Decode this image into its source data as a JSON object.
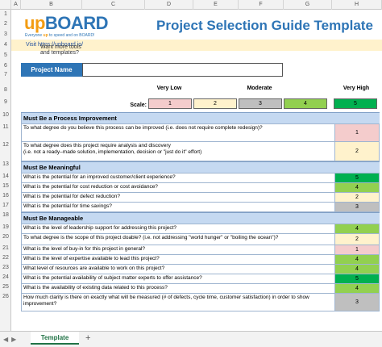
{
  "columns": [
    "A",
    "B",
    "C",
    "D",
    "E",
    "F",
    "G",
    "H"
  ],
  "rows": [
    "1",
    "2",
    "3",
    "4",
    "5",
    "6",
    "7",
    "8",
    "9",
    "10",
    "11",
    "12",
    "13",
    "14",
    "15",
    "16",
    "17",
    "18",
    "19",
    "20",
    "21",
    "22",
    "23",
    "24",
    "25",
    "26"
  ],
  "logo": {
    "up": "up",
    "board": "BOARD",
    "tagline_pre": "Everyone ",
    "tagline_up": "up",
    "tagline_post": " to speed and on BOARD!"
  },
  "title": "Project Selection Guide Template",
  "banner": {
    "text": "Want more tools and templates? ",
    "link": "Visit https://upboard.io/"
  },
  "project_name": {
    "label": "Project Name",
    "value": ""
  },
  "scale": {
    "label": "Scale:",
    "very_low": "Very Low",
    "moderate": "Moderate",
    "very_high": "Very High",
    "values": [
      "1",
      "2",
      "3",
      "4",
      "5"
    ]
  },
  "colors": {
    "1": "#f4cccc",
    "2": "#fff2cc",
    "3": "#bfbfbf",
    "4": "#92d050",
    "5": "#00b050",
    "accent": "#2e75b6",
    "section": "#c5d9f1"
  },
  "sections": [
    {
      "title": "Must Be a Process Improvement",
      "questions": [
        {
          "text": "To what degree do you believe this process can be improved (i.e. does not require complete redesign)?",
          "score": "1"
        },
        {
          "text": "To what degree does this project require analysis and discovery\n(i.e. not a ready–made solution, implementation, decision or \"just do it\" effort)",
          "score": "2"
        }
      ]
    },
    {
      "title": "Must Be Meaningful",
      "questions": [
        {
          "text": "What is the potential for an improved customer/client experience?",
          "score": "5"
        },
        {
          "text": "What is the potential for cost reduction or cost avoidance?",
          "score": "4"
        },
        {
          "text": "What is the potential for defect reduction?",
          "score": "2"
        },
        {
          "text": "What is the potential for time savings?",
          "score": "3"
        }
      ]
    },
    {
      "title": "Must Be Manageable",
      "questions": [
        {
          "text": "What is the level of leadership support for addressing this project?",
          "score": "4"
        },
        {
          "text": "To what degree is the scope of this project doable? (i.e. not addressing \"world hunger\" or \"boiling the ocean\")?",
          "score": "2"
        },
        {
          "text": "What is the level of buy-in for this project in general?",
          "score": "1"
        },
        {
          "text": "What is the level of expertise available to lead this project?",
          "score": "4"
        },
        {
          "text": "What level of resources are available to work on this project?",
          "score": "4"
        },
        {
          "text": "What is the potential availability of subject matter experts to offer assistance?",
          "score": "5"
        },
        {
          "text": "What is the availability of existing data related to this process?",
          "score": "4"
        },
        {
          "text": "How much clarity is there on exactly what will be measured (# of defects, cycle time, customer satisfaction) in order to show improvement?",
          "score": "3"
        }
      ]
    }
  ],
  "tabs": {
    "active": "Template",
    "add": "+"
  }
}
